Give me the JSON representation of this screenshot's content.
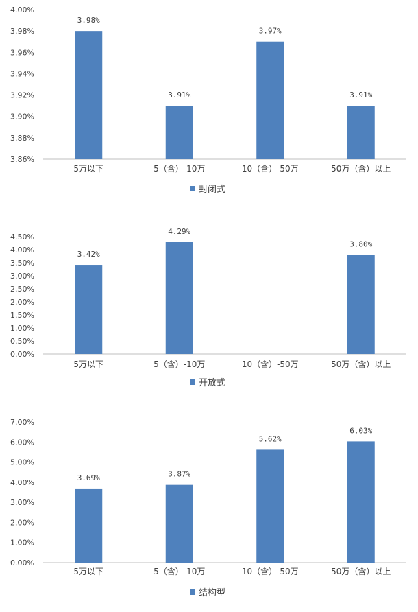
{
  "chart_data": [
    {
      "type": "bar",
      "categories": [
        "5万以下",
        "5（含）-10万",
        "10（含）-50万",
        "50万（含）以上"
      ],
      "series": [
        {
          "name": "封闭式",
          "values": [
            3.98,
            3.91,
            3.97,
            3.91
          ],
          "labels": [
            "3.98%",
            "3.91%",
            "3.97%",
            "3.91%"
          ]
        }
      ],
      "ylim": [
        3.86,
        4.0
      ],
      "ytick_labels": [
        "4.00%",
        "3.98%",
        "3.96%",
        "3.94%",
        "3.92%",
        "3.90%",
        "3.88%",
        "3.86%"
      ],
      "ytick_values": [
        4.0,
        3.98,
        3.96,
        3.94,
        3.92,
        3.9,
        3.88,
        3.86
      ],
      "legend": "bottom",
      "grid": false
    },
    {
      "type": "bar",
      "categories": [
        "5万以下",
        "5（含）-10万",
        "10（含）-50万",
        "50万（含）以上"
      ],
      "series": [
        {
          "name": "开放式",
          "values": [
            3.42,
            4.29,
            null,
            3.8
          ],
          "labels": [
            "3.42%",
            "4.29%",
            "",
            "3.80%"
          ]
        }
      ],
      "ylim": [
        0,
        4.5
      ],
      "ytick_labels": [
        "4.50%",
        "4.00%",
        "3.50%",
        "3.00%",
        "2.50%",
        "2.00%",
        "1.50%",
        "1.00%",
        "0.50%",
        "0.00%"
      ],
      "ytick_values": [
        4.5,
        4.0,
        3.5,
        3.0,
        2.5,
        2.0,
        1.5,
        1.0,
        0.5,
        0.0
      ],
      "legend": "bottom",
      "grid": false
    },
    {
      "type": "bar",
      "categories": [
        "5万以下",
        "5（含）-10万",
        "10（含）-50万",
        "50万（含）以上"
      ],
      "series": [
        {
          "name": "结构型",
          "values": [
            3.69,
            3.87,
            5.62,
            6.03
          ],
          "labels": [
            "3.69%",
            "3.87%",
            "5.62%",
            "6.03%"
          ]
        }
      ],
      "ylim": [
        0,
        7.0
      ],
      "ytick_labels": [
        "7.00%",
        "6.00%",
        "5.00%",
        "4.00%",
        "3.00%",
        "2.00%",
        "1.00%",
        "0.00%"
      ],
      "ytick_values": [
        7.0,
        6.0,
        5.0,
        4.0,
        3.0,
        2.0,
        1.0,
        0.0
      ],
      "legend": "bottom",
      "grid": false
    }
  ],
  "colors": {
    "bar": "#4f81bd",
    "axis": "#bfbfbf",
    "text": "#404040"
  }
}
